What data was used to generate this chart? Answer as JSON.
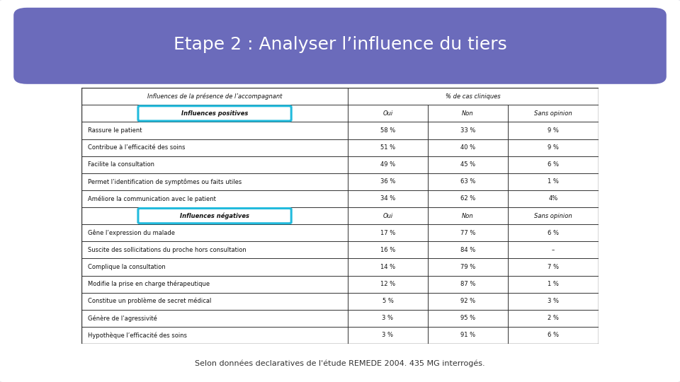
{
  "title": "Etape 2 : Analyser l’influence du tiers",
  "subtitle": "Selon données declaratives de l'étude REMEDE 2004. 435 MG interrogés.",
  "background_color": "#f0f0f0",
  "title_bg_color": "#6b6bbb",
  "slide_border_color": "#7799aa",
  "positive_label": "Influences positives",
  "negative_label": "Influences négatives",
  "positive_rows": [
    [
      "Rassure le patient",
      "58 %",
      "33 %",
      "9 %"
    ],
    [
      "Contribue à l’efficacité des soins",
      "51 %",
      "40 %",
      "9 %"
    ],
    [
      "Facilite la consultation",
      "49 %",
      "45 %",
      "6 %"
    ],
    [
      "Permet l’identification de symptômes ou faits utiles",
      "36 %",
      "63 %",
      "1 %"
    ],
    [
      "Améliore la communication avec le patient",
      "34 %",
      "62 %",
      "4%"
    ]
  ],
  "negative_rows": [
    [
      "Gêne l’expression du malade",
      "17 %",
      "77 %",
      "6 %"
    ],
    [
      "Suscite des sollicitations du proche hors consultation",
      "16 %",
      "84 %",
      "–"
    ],
    [
      "Complique la consultation",
      "14 %",
      "79 %",
      "7 %"
    ],
    [
      "Modifie la prise en charge thérapeutique",
      "12 %",
      "87 %",
      "1 %"
    ],
    [
      "Constitue un problème de secret médical",
      "5 %",
      "92 %",
      "3 %"
    ],
    [
      "Génère de l’agressivité",
      "3 %",
      "95 %",
      "2 %"
    ],
    [
      "Hypothèque l’efficacité des soins",
      "3 %",
      "91 %",
      "6 %"
    ]
  ],
  "title_color": "#ffffff",
  "table_border_color": "#444444",
  "cyan_box_color": "#22bbdd",
  "header_text_color": "#111111",
  "row_text_color": "#111111"
}
